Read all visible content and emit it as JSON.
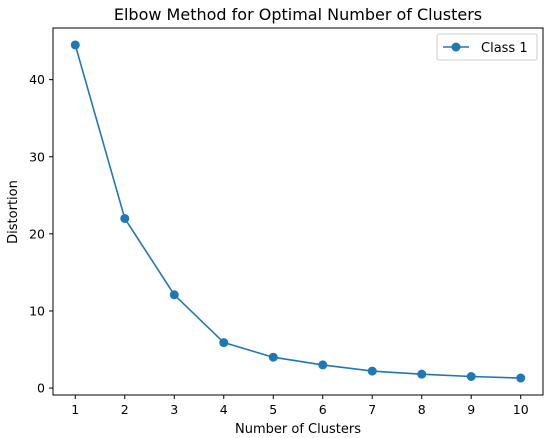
{
  "chart_data": {
    "type": "line",
    "title": "Elbow Method for Optimal Number of Clusters",
    "xlabel": "Number of Clusters",
    "ylabel": "Distortion",
    "x": [
      1,
      2,
      3,
      4,
      5,
      6,
      7,
      8,
      9,
      10
    ],
    "series": [
      {
        "name": "Class 1",
        "color": "#1f77b4",
        "marker": "circle",
        "values": [
          44.5,
          22.0,
          12.1,
          5.9,
          4.0,
          3.0,
          2.2,
          1.8,
          1.5,
          1.3
        ]
      }
    ],
    "xticks": [
      1,
      2,
      3,
      4,
      5,
      6,
      7,
      8,
      9,
      10
    ],
    "yticks": [
      0,
      10,
      20,
      30,
      40
    ],
    "xlim": [
      0.55,
      10.45
    ],
    "ylim": [
      -0.9,
      46.7
    ],
    "grid": false,
    "legend_position": "top-right"
  }
}
